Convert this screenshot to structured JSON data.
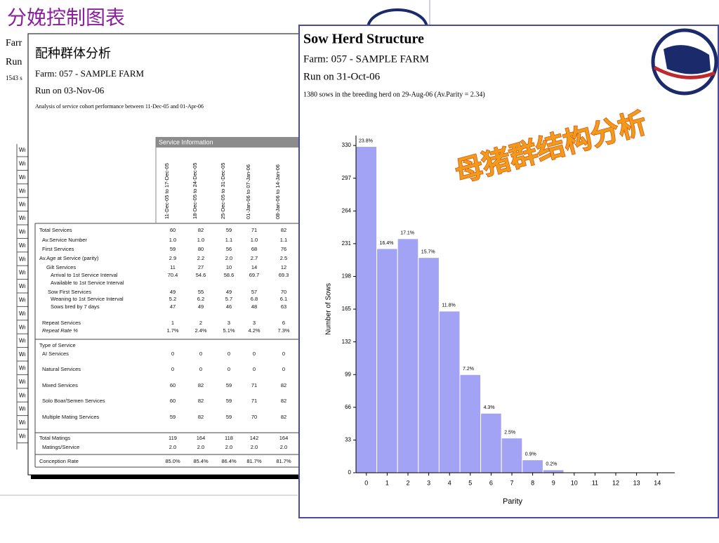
{
  "slide_title": "分娩控制图表",
  "back_doc": {
    "lines": [
      "Farr",
      "Run",
      "1543 s"
    ],
    "row_labels": [
      "Wı",
      "Wı",
      "Wı",
      "Wı",
      "Wı",
      "Wı",
      "Wı",
      "Wı",
      "Wı",
      "Wı",
      "Wı",
      "Wı",
      "Wı",
      "Wı",
      "Wı",
      "Wı",
      "Wı",
      "Wı",
      "Wı",
      "Wı",
      "Wı",
      "Wı"
    ]
  },
  "service_doc": {
    "title": "配种群体分析",
    "farm": "Farm: 057 - SAMPLE FARM",
    "run": "Run on 03-Nov-06",
    "note": "Analysis of service cohort performance between 11-Dec-05 and 01-Apr-06",
    "table": {
      "header": "Service Information",
      "columns": [
        "11-Dec-05 to 17-Dec-05",
        "18-Dec-05 to 24-Dec-05",
        "25-Dec-05 to 31-Dec-05",
        "01-Jan-06 to 07-Jan-06",
        "08-Jan-06 to 14-Jan-06"
      ],
      "rows": [
        {
          "label": "Total Services",
          "values": [
            "60",
            "82",
            "59",
            "71",
            "82"
          ]
        },
        {
          "label": "Av.Service Number",
          "values": [
            "1.0",
            "1.0",
            "1.1",
            "1.0",
            "1.1"
          ]
        },
        {
          "label": "First Services",
          "values": [
            "59",
            "80",
            "56",
            "68",
            "76"
          ]
        },
        {
          "label": "Av.Age at Service (parity)",
          "values": [
            "2.9",
            "2.2",
            "2.0",
            "2.7",
            "2.5"
          ]
        },
        {
          "label": "Gilt Services",
          "values": [
            "11",
            "27",
            "10",
            "14",
            "12"
          ]
        },
        {
          "label": "Arrival to 1st Service Interval",
          "values": [
            "70.4",
            "54.6",
            "58.6",
            "69.7",
            "69.3"
          ]
        },
        {
          "label": "Available to 1st Service Interval"
        },
        {
          "label": "Sow First Services",
          "values": [
            "49",
            "55",
            "49",
            "57",
            "70"
          ]
        },
        {
          "label": "Weaning to 1st Service Interval",
          "values": [
            "5.2",
            "6.2",
            "5.7",
            "6.8",
            "6.1"
          ]
        },
        {
          "label": "Sows bred by 7 days",
          "values": [
            "47",
            "49",
            "46",
            "48",
            "63"
          ]
        },
        {
          "label": "Repeat Services",
          "values": [
            "1",
            "2",
            "3",
            "3",
            "6"
          ]
        },
        {
          "label": "Repeat Rate %",
          "values": [
            "1.7%",
            "2.4%",
            "5.1%",
            "4.2%",
            "7.3%"
          ]
        },
        {
          "label": "Type of Service"
        },
        {
          "label": "AI Services",
          "values": [
            "0",
            "0",
            "0",
            "0",
            "0"
          ]
        },
        {
          "label": "Natural Services",
          "values": [
            "0",
            "0",
            "0",
            "0",
            "0"
          ]
        },
        {
          "label": "Mixed Services",
          "values": [
            "60",
            "82",
            "59",
            "71",
            "82"
          ]
        },
        {
          "label": "Solo Boar/Semen Services",
          "values": [
            "60",
            "82",
            "59",
            "71",
            "82"
          ]
        },
        {
          "label": "Multiple Mating Services",
          "values": [
            "59",
            "82",
            "59",
            "70",
            "82"
          ]
        },
        {
          "label": "Total Matings",
          "values": [
            "119",
            "164",
            "118",
            "142",
            "164"
          ]
        },
        {
          "label": "Matings/Service",
          "values": [
            "2.0",
            "2.0",
            "2.0",
            "2.0",
            "2.0"
          ]
        },
        {
          "label": "Conception Rate",
          "values": [
            "85.0%",
            "85.4%",
            "86.4%",
            "81.7%",
            "81.7%"
          ]
        }
      ]
    }
  },
  "herd_doc": {
    "title": "Sow Herd Structure",
    "farm": "Farm: 057 - SAMPLE FARM",
    "run": "Run on 31-Oct-06",
    "note": "1380 sows in the breeding herd on 29-Aug-06 (Av.Parity = 2.34)",
    "banner": "母猪群结构分析"
  },
  "chart_data": {
    "type": "bar",
    "x_label": "Parity",
    "y_label": "Number of Sows",
    "color": "#a3a3f5",
    "categories": [
      "0",
      "1",
      "2",
      "3",
      "4",
      "5",
      "6",
      "7",
      "8",
      "9",
      "10",
      "11",
      "12",
      "13",
      "14"
    ],
    "values": [
      329,
      226,
      236,
      217,
      163,
      99,
      60,
      35,
      13,
      3,
      0,
      0,
      0,
      0,
      0
    ],
    "bar_labels": [
      "23.8%",
      "16.4%",
      "17.1%",
      "15.7%",
      "11.8%",
      "7.2%",
      "4.3%",
      "2.5%",
      "0.9%",
      "0.2%",
      null,
      null,
      null,
      null,
      null
    ],
    "ylim": [
      0,
      340
    ],
    "yticks": [
      0,
      33,
      66,
      99,
      132,
      165,
      198,
      231,
      264,
      297,
      330
    ]
  }
}
